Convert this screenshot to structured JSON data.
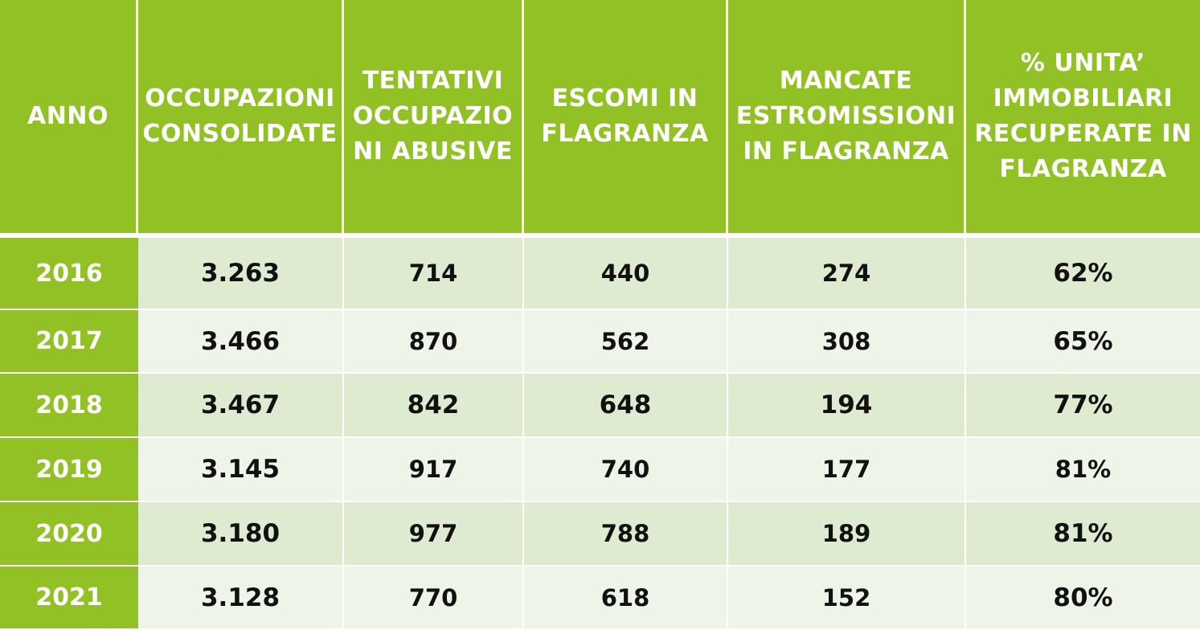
{
  "colors": {
    "header_bg": "#92c126",
    "header_text": "#ffffff",
    "row_odd_bg": "#deebd0",
    "row_even_bg": "#eef4e8",
    "cell_text": "#111111"
  },
  "table": {
    "headers": [
      "ANNO",
      "OCCUPAZIONI\nCONSOLIDATE",
      "TENTATIVI\nOCCUPAZIO\nNI ABUSIVE",
      "ESCOMI IN\nFLAGRANZA",
      "MANCATE\nESTROMISSIONI\nIN FLAGRANZA",
      "% UNITA’\nIMMOBILIARI\nRECUPERATE IN\nFLAGRANZA"
    ],
    "rows": [
      [
        "2016",
        "3.263",
        "714",
        "440",
        "274",
        "62%"
      ],
      [
        "2017",
        "3.466",
        "870",
        "562",
        "308",
        "65%"
      ],
      [
        "2018",
        "3.467",
        "842",
        "648",
        "194",
        "77%"
      ],
      [
        "2019",
        "3.145",
        "917",
        "740",
        "177",
        "81%"
      ],
      [
        "2020",
        "3.180",
        "977",
        "788",
        "189",
        "81%"
      ],
      [
        "2021",
        "3.128",
        "770",
        "618",
        "152",
        "80%"
      ]
    ]
  }
}
